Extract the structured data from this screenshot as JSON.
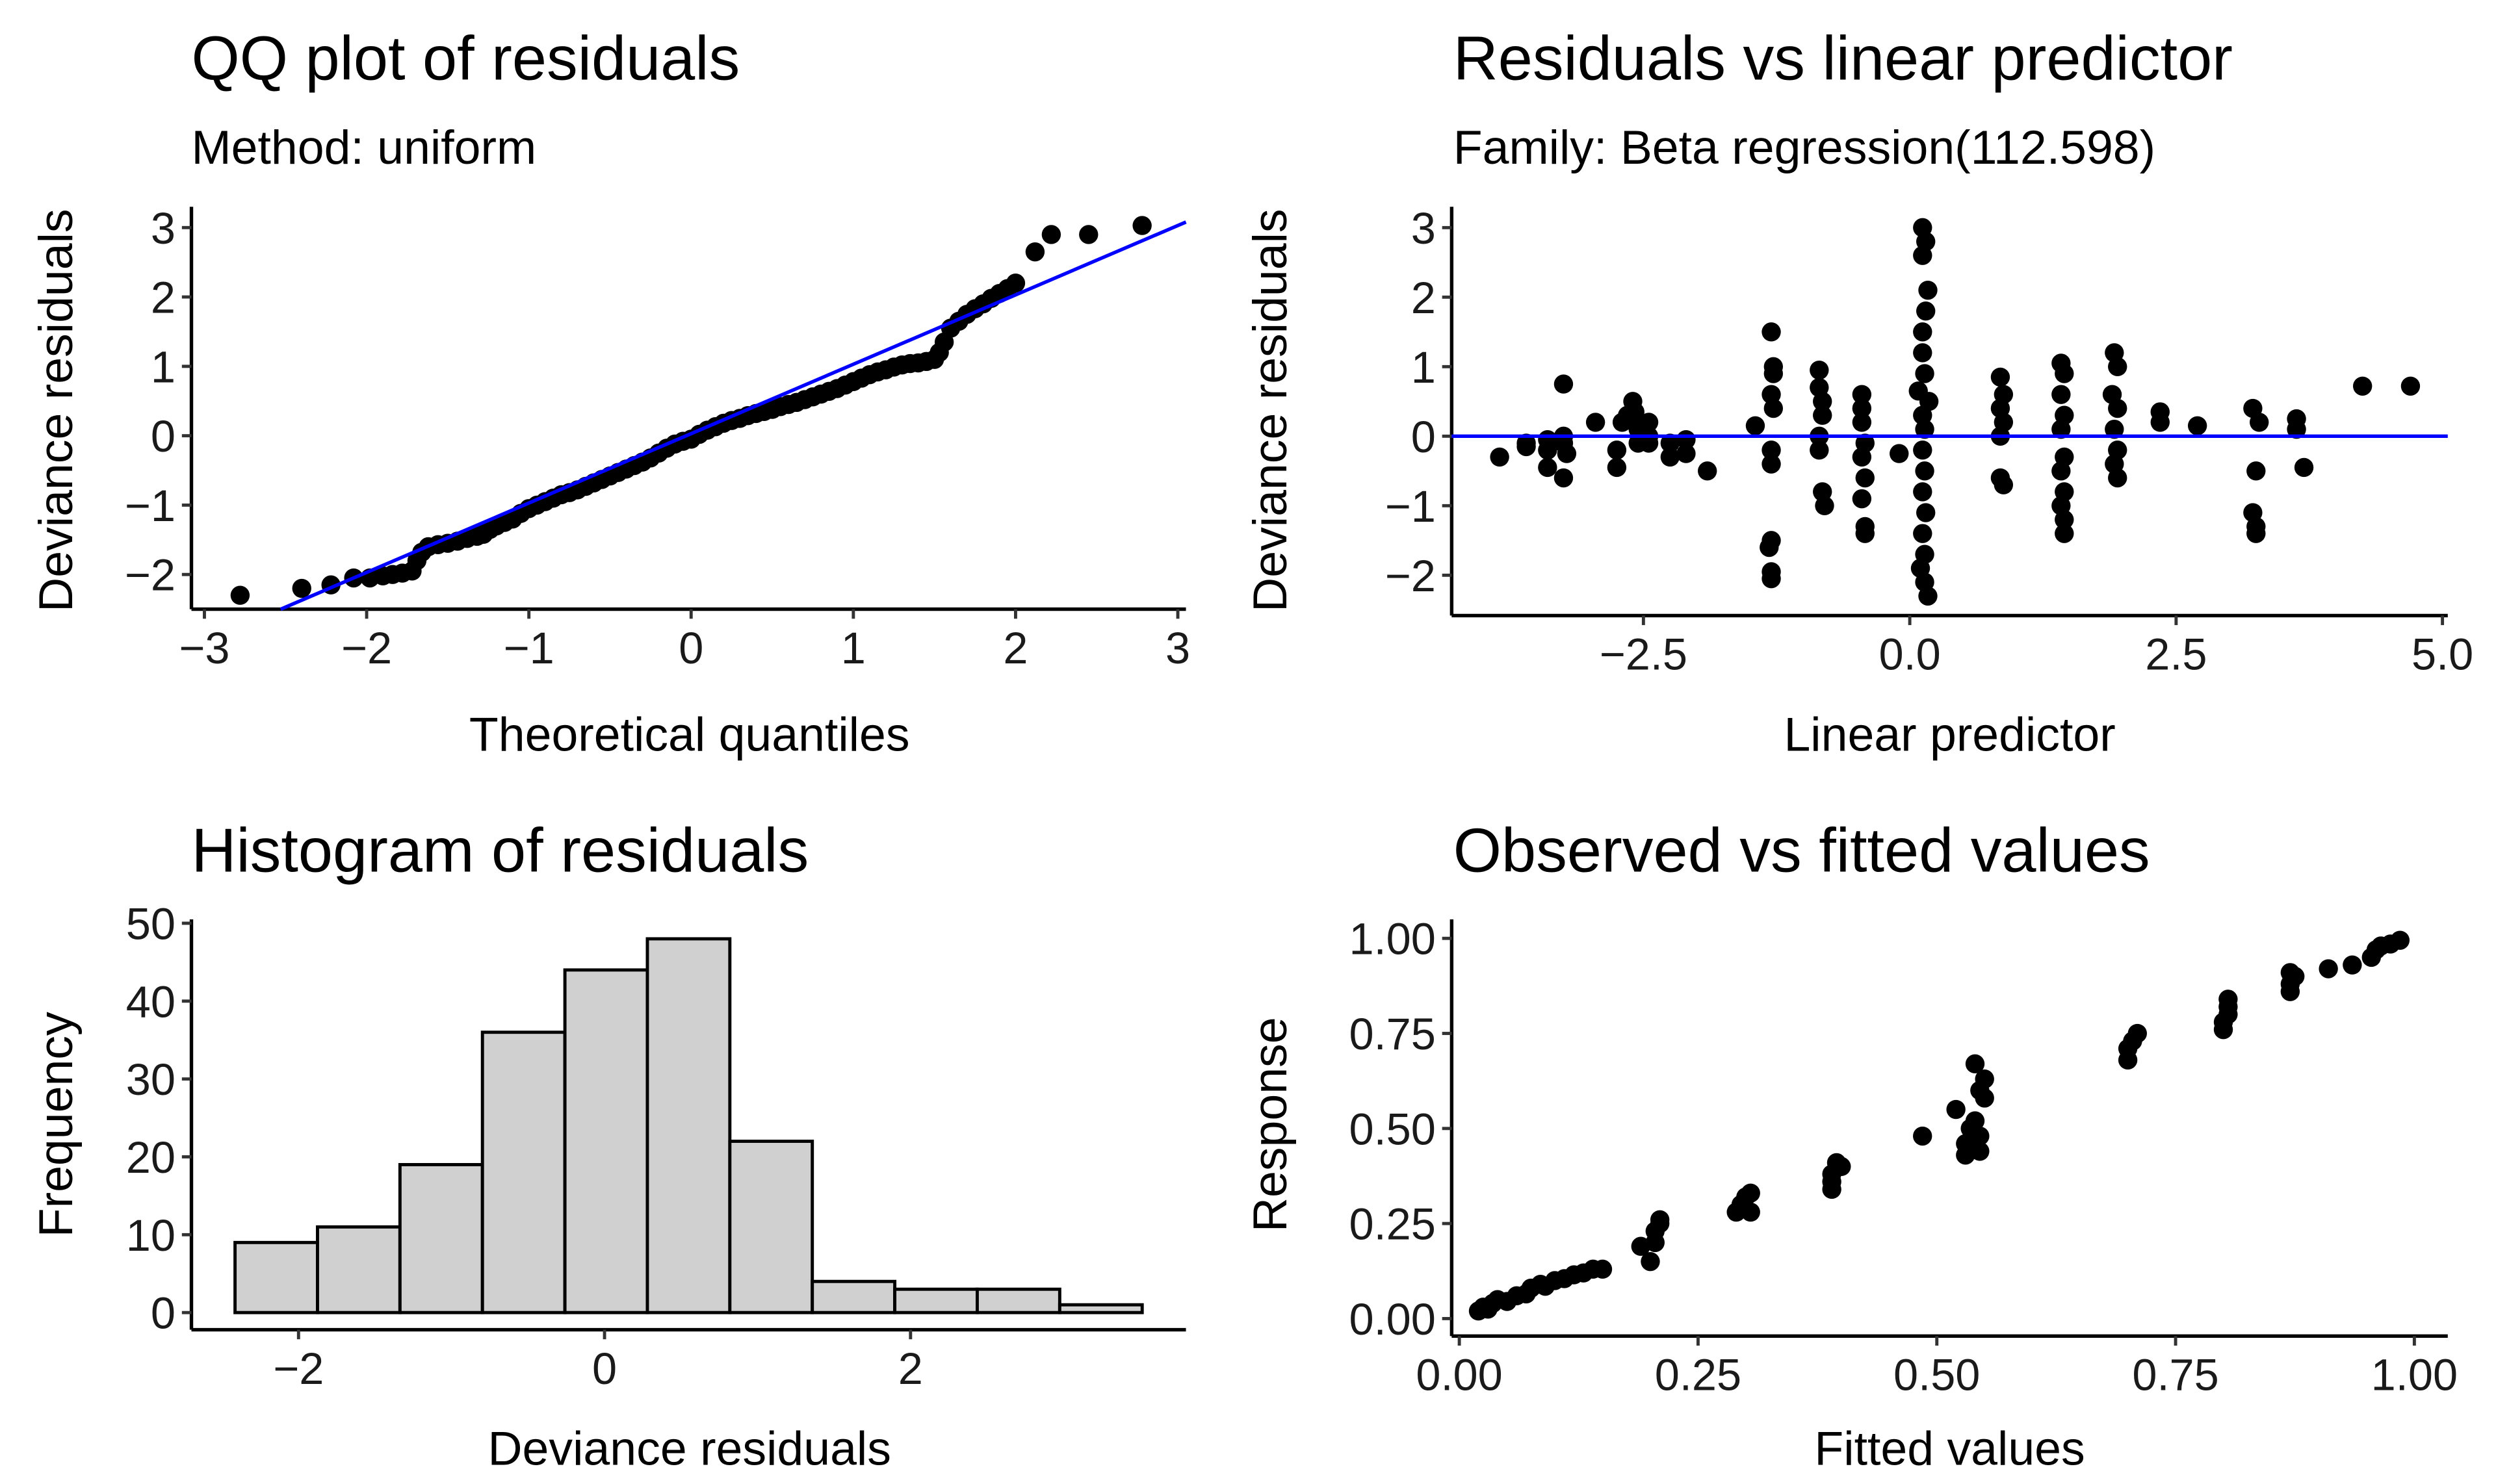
{
  "chart_data": [
    {
      "id": "qq",
      "type": "scatter",
      "title": "QQ plot of residuals",
      "subtitle": "Method: uniform",
      "xlabel": "Theoretical quantiles",
      "ylabel": "Deviance residuals",
      "xlim": [
        -3.08,
        3.05
      ],
      "ylim": [
        -2.5,
        3.3
      ],
      "xticks": [
        -3,
        -2,
        -1,
        0,
        1,
        2,
        3
      ],
      "xtick_labels": [
        "−3",
        "−2",
        "−1",
        "0",
        "1",
        "2",
        "3"
      ],
      "yticks": [
        -2,
        -1,
        0,
        1,
        2,
        3
      ],
      "ytick_labels": [
        "−2",
        "−1",
        "0",
        "1",
        "2",
        "3"
      ],
      "reference_line": {
        "slope": 1.0,
        "intercept": 0.03,
        "color": "#0000ff"
      },
      "points": [
        [
          -2.78,
          -2.3
        ],
        [
          -2.4,
          -2.2
        ],
        [
          -2.22,
          -2.15
        ],
        [
          -2.08,
          -2.05
        ],
        [
          -1.98,
          -2.05
        ],
        [
          -1.9,
          -2.02
        ],
        [
          -1.84,
          -2.0
        ],
        [
          -1.78,
          -1.98
        ],
        [
          -1.72,
          -1.95
        ],
        [
          -1.69,
          -1.8
        ],
        [
          -1.66,
          -1.68
        ],
        [
          -1.62,
          -1.6
        ],
        [
          -1.56,
          -1.57
        ],
        [
          -1.5,
          -1.55
        ],
        [
          -1.44,
          -1.52
        ],
        [
          -1.38,
          -1.48
        ],
        [
          -1.32,
          -1.45
        ],
        [
          -1.28,
          -1.42
        ],
        [
          -1.24,
          -1.35
        ],
        [
          -1.2,
          -1.3
        ],
        [
          -1.15,
          -1.25
        ],
        [
          -1.1,
          -1.2
        ],
        [
          -1.05,
          -1.12
        ],
        [
          -1.0,
          -1.05
        ],
        [
          -0.95,
          -1.0
        ],
        [
          -0.9,
          -0.95
        ],
        [
          -0.85,
          -0.9
        ],
        [
          -0.8,
          -0.85
        ],
        [
          -0.75,
          -0.82
        ],
        [
          -0.7,
          -0.78
        ],
        [
          -0.65,
          -0.73
        ],
        [
          -0.6,
          -0.68
        ],
        [
          -0.55,
          -0.63
        ],
        [
          -0.5,
          -0.58
        ],
        [
          -0.45,
          -0.53
        ],
        [
          -0.4,
          -0.48
        ],
        [
          -0.35,
          -0.43
        ],
        [
          -0.3,
          -0.38
        ],
        [
          -0.25,
          -0.32
        ],
        [
          -0.2,
          -0.25
        ],
        [
          -0.15,
          -0.18
        ],
        [
          -0.1,
          -0.12
        ],
        [
          -0.05,
          -0.08
        ],
        [
          0.0,
          -0.05
        ],
        [
          0.05,
          0.02
        ],
        [
          0.1,
          0.08
        ],
        [
          0.15,
          0.13
        ],
        [
          0.2,
          0.18
        ],
        [
          0.25,
          0.22
        ],
        [
          0.3,
          0.25
        ],
        [
          0.35,
          0.29
        ],
        [
          0.4,
          0.32
        ],
        [
          0.45,
          0.35
        ],
        [
          0.5,
          0.38
        ],
        [
          0.55,
          0.42
        ],
        [
          0.6,
          0.45
        ],
        [
          0.65,
          0.48
        ],
        [
          0.7,
          0.52
        ],
        [
          0.75,
          0.56
        ],
        [
          0.8,
          0.6
        ],
        [
          0.85,
          0.64
        ],
        [
          0.9,
          0.68
        ],
        [
          0.95,
          0.73
        ],
        [
          1.0,
          0.78
        ],
        [
          1.05,
          0.83
        ],
        [
          1.1,
          0.88
        ],
        [
          1.15,
          0.92
        ],
        [
          1.2,
          0.95
        ],
        [
          1.25,
          0.99
        ],
        [
          1.3,
          1.02
        ],
        [
          1.35,
          1.04
        ],
        [
          1.4,
          1.05
        ],
        [
          1.45,
          1.07
        ],
        [
          1.5,
          1.1
        ],
        [
          1.53,
          1.2
        ],
        [
          1.56,
          1.35
        ],
        [
          1.6,
          1.55
        ],
        [
          1.65,
          1.65
        ],
        [
          1.7,
          1.75
        ],
        [
          1.75,
          1.83
        ],
        [
          1.8,
          1.9
        ],
        [
          1.85,
          1.98
        ],
        [
          1.9,
          2.05
        ],
        [
          1.95,
          2.12
        ],
        [
          2.0,
          2.2
        ],
        [
          2.12,
          2.65
        ],
        [
          2.22,
          2.9
        ],
        [
          2.45,
          2.9
        ],
        [
          2.78,
          3.03
        ]
      ]
    },
    {
      "id": "resid-vs-lp",
      "type": "scatter",
      "title": "Residuals vs linear predictor",
      "subtitle": "Family: Beta regression(112.598)",
      "xlabel": "Linear predictor",
      "ylabel": "Deviance residuals",
      "xlim": [
        -4.3,
        5.05
      ],
      "ylim": [
        -2.58,
        3.3
      ],
      "xticks": [
        -2.5,
        0.0,
        2.5,
        5.0
      ],
      "xtick_labels": [
        "−2.5",
        "0.0",
        "2.5",
        "5.0"
      ],
      "yticks": [
        -2,
        -1,
        0,
        1,
        2,
        3
      ],
      "ytick_labels": [
        "−2",
        "−1",
        "0",
        "1",
        "2",
        "3"
      ],
      "reference_line": {
        "slope": 0,
        "intercept": 0,
        "color": "#0000ff"
      },
      "points": [
        [
          -3.85,
          -0.3
        ],
        [
          -3.6,
          -0.1
        ],
        [
          -3.6,
          -0.15
        ],
        [
          -3.4,
          -0.2
        ],
        [
          -3.4,
          -0.45
        ],
        [
          -3.4,
          -0.05
        ],
        [
          -3.25,
          0.75
        ],
        [
          -3.25,
          -0.6
        ],
        [
          -3.25,
          -0.1
        ],
        [
          -3.25,
          0.0
        ],
        [
          -3.22,
          -0.25
        ],
        [
          -2.95,
          0.2
        ],
        [
          -2.75,
          -0.2
        ],
        [
          -2.75,
          -0.45
        ],
        [
          -2.7,
          0.2
        ],
        [
          -2.65,
          0.3
        ],
        [
          -2.6,
          0.5
        ],
        [
          -2.58,
          0.35
        ],
        [
          -2.55,
          0.1
        ],
        [
          -2.55,
          -0.1
        ],
        [
          -2.45,
          0.2
        ],
        [
          -2.45,
          0.0
        ],
        [
          -2.45,
          -0.1
        ],
        [
          -2.25,
          -0.1
        ],
        [
          -2.25,
          -0.3
        ],
        [
          -2.1,
          -0.05
        ],
        [
          -2.1,
          -0.25
        ],
        [
          -1.9,
          -0.5
        ],
        [
          -1.45,
          0.15
        ],
        [
          -1.3,
          1.5
        ],
        [
          -1.28,
          1.0
        ],
        [
          -1.28,
          0.9
        ],
        [
          -1.3,
          0.6
        ],
        [
          -1.28,
          0.4
        ],
        [
          -1.3,
          -0.2
        ],
        [
          -1.3,
          -0.4
        ],
        [
          -1.3,
          -1.5
        ],
        [
          -1.32,
          -1.6
        ],
        [
          -1.3,
          -1.95
        ],
        [
          -1.3,
          -2.05
        ],
        [
          -0.85,
          0.95
        ],
        [
          -0.85,
          0.7
        ],
        [
          -0.82,
          0.5
        ],
        [
          -0.82,
          0.3
        ],
        [
          -0.85,
          0.0
        ],
        [
          -0.85,
          -0.2
        ],
        [
          -0.82,
          -0.8
        ],
        [
          -0.8,
          -1.0
        ],
        [
          -0.45,
          0.6
        ],
        [
          -0.45,
          0.4
        ],
        [
          -0.45,
          0.2
        ],
        [
          -0.42,
          -0.1
        ],
        [
          -0.45,
          -0.3
        ],
        [
          -0.42,
          -0.6
        ],
        [
          -0.45,
          -0.9
        ],
        [
          -0.42,
          -1.3
        ],
        [
          -0.42,
          -1.4
        ],
        [
          -0.1,
          -0.25
        ],
        [
          0.12,
          3.0
        ],
        [
          0.15,
          2.8
        ],
        [
          0.12,
          2.6
        ],
        [
          0.17,
          2.1
        ],
        [
          0.15,
          1.8
        ],
        [
          0.12,
          1.5
        ],
        [
          0.12,
          1.2
        ],
        [
          0.14,
          0.9
        ],
        [
          0.08,
          0.65
        ],
        [
          0.18,
          0.5
        ],
        [
          0.12,
          0.3
        ],
        [
          0.14,
          0.1
        ],
        [
          0.12,
          -0.2
        ],
        [
          0.14,
          -0.5
        ],
        [
          0.12,
          -0.8
        ],
        [
          0.15,
          -1.1
        ],
        [
          0.12,
          -1.4
        ],
        [
          0.14,
          -1.7
        ],
        [
          0.1,
          -1.9
        ],
        [
          0.14,
          -2.1
        ],
        [
          0.17,
          -2.3
        ],
        [
          0.85,
          0.85
        ],
        [
          0.88,
          0.6
        ],
        [
          0.85,
          0.4
        ],
        [
          0.88,
          0.2
        ],
        [
          0.85,
          0.0
        ],
        [
          0.85,
          -0.6
        ],
        [
          0.88,
          -0.7
        ],
        [
          1.42,
          1.05
        ],
        [
          1.45,
          0.9
        ],
        [
          1.42,
          0.6
        ],
        [
          1.45,
          0.3
        ],
        [
          1.42,
          0.1
        ],
        [
          1.45,
          -0.3
        ],
        [
          1.42,
          -0.5
        ],
        [
          1.45,
          -0.8
        ],
        [
          1.42,
          -1.0
        ],
        [
          1.45,
          -1.2
        ],
        [
          1.45,
          -1.4
        ],
        [
          1.92,
          1.2
        ],
        [
          1.95,
          1.0
        ],
        [
          1.9,
          0.6
        ],
        [
          1.95,
          0.4
        ],
        [
          1.92,
          0.1
        ],
        [
          1.95,
          -0.2
        ],
        [
          1.92,
          -0.4
        ],
        [
          1.95,
          -0.6
        ],
        [
          2.35,
          0.35
        ],
        [
          2.35,
          0.2
        ],
        [
          2.7,
          0.15
        ],
        [
          3.22,
          0.4
        ],
        [
          3.28,
          0.2
        ],
        [
          3.25,
          -0.5
        ],
        [
          3.22,
          -1.1
        ],
        [
          3.25,
          -1.3
        ],
        [
          3.25,
          -1.4
        ],
        [
          3.63,
          0.25
        ],
        [
          3.63,
          0.1
        ],
        [
          3.7,
          -0.45
        ],
        [
          4.25,
          0.72
        ],
        [
          4.7,
          0.72
        ]
      ]
    },
    {
      "id": "histogram",
      "type": "bar",
      "title": "Histogram of residuals",
      "xlabel": "Deviance residuals",
      "ylabel": "Frequency",
      "xlim": [
        -2.7,
        3.8
      ],
      "ylim": [
        -2.2,
        50.5
      ],
      "xticks": [
        -2,
        0,
        2
      ],
      "xtick_labels": [
        "−2",
        "0",
        "2"
      ],
      "yticks": [
        0,
        10,
        20,
        30,
        40,
        50
      ],
      "ytick_labels": [
        "0",
        "10",
        "20",
        "30",
        "40",
        "50"
      ],
      "breaks": [
        -2.415,
        -1.876,
        -1.337,
        -0.798,
        -0.259,
        0.28,
        0.819,
        1.358,
        1.897,
        2.436,
        2.975,
        3.514
      ],
      "values": [
        9,
        11,
        19,
        36,
        44,
        48,
        22,
        4,
        3,
        3,
        1
      ],
      "fill": "#d0d0d0"
    },
    {
      "id": "obs-vs-fitted",
      "type": "scatter",
      "title": "Observed vs fitted values",
      "xlabel": "Fitted values",
      "ylabel": "Response",
      "xlim": [
        -0.008,
        1.035
      ],
      "ylim": [
        -0.046,
        1.05
      ],
      "xticks": [
        0.0,
        0.25,
        0.5,
        0.75,
        1.0
      ],
      "xtick_labels": [
        "0.00",
        "0.25",
        "0.50",
        "0.75",
        "1.00"
      ],
      "yticks": [
        0.0,
        0.25,
        0.5,
        0.75,
        1.0
      ],
      "ytick_labels": [
        "0.00",
        "0.25",
        "0.50",
        "0.75",
        "1.00"
      ],
      "points": [
        [
          0.02,
          0.02
        ],
        [
          0.025,
          0.03
        ],
        [
          0.03,
          0.025
        ],
        [
          0.035,
          0.04
        ],
        [
          0.04,
          0.05
        ],
        [
          0.05,
          0.045
        ],
        [
          0.06,
          0.06
        ],
        [
          0.07,
          0.065
        ],
        [
          0.075,
          0.08
        ],
        [
          0.085,
          0.09
        ],
        [
          0.09,
          0.085
        ],
        [
          0.1,
          0.1
        ],
        [
          0.11,
          0.105
        ],
        [
          0.12,
          0.115
        ],
        [
          0.13,
          0.12
        ],
        [
          0.14,
          0.13
        ],
        [
          0.15,
          0.13
        ],
        [
          0.19,
          0.19
        ],
        [
          0.2,
          0.15
        ],
        [
          0.205,
          0.2
        ],
        [
          0.205,
          0.23
        ],
        [
          0.21,
          0.26
        ],
        [
          0.21,
          0.25
        ],
        [
          0.29,
          0.28
        ],
        [
          0.295,
          0.3
        ],
        [
          0.3,
          0.32
        ],
        [
          0.305,
          0.33
        ],
        [
          0.305,
          0.28
        ],
        [
          0.39,
          0.34
        ],
        [
          0.39,
          0.38
        ],
        [
          0.395,
          0.41
        ],
        [
          0.4,
          0.4
        ],
        [
          0.39,
          0.36
        ],
        [
          0.485,
          0.48
        ],
        [
          0.53,
          0.43
        ],
        [
          0.53,
          0.46
        ],
        [
          0.535,
          0.5
        ],
        [
          0.52,
          0.55
        ],
        [
          0.54,
          0.52
        ],
        [
          0.545,
          0.44
        ],
        [
          0.545,
          0.6
        ],
        [
          0.55,
          0.63
        ],
        [
          0.54,
          0.67
        ],
        [
          0.55,
          0.58
        ],
        [
          0.545,
          0.48
        ],
        [
          0.7,
          0.68
        ],
        [
          0.7,
          0.71
        ],
        [
          0.705,
          0.73
        ],
        [
          0.71,
          0.75
        ],
        [
          0.8,
          0.76
        ],
        [
          0.8,
          0.78
        ],
        [
          0.805,
          0.8
        ],
        [
          0.805,
          0.82
        ],
        [
          0.805,
          0.84
        ],
        [
          0.87,
          0.86
        ],
        [
          0.87,
          0.88
        ],
        [
          0.875,
          0.9
        ],
        [
          0.87,
          0.91
        ],
        [
          0.91,
          0.92
        ],
        [
          0.935,
          0.93
        ],
        [
          0.955,
          0.95
        ],
        [
          0.96,
          0.97
        ],
        [
          0.965,
          0.98
        ],
        [
          0.975,
          0.985
        ],
        [
          0.985,
          0.995
        ]
      ]
    }
  ]
}
